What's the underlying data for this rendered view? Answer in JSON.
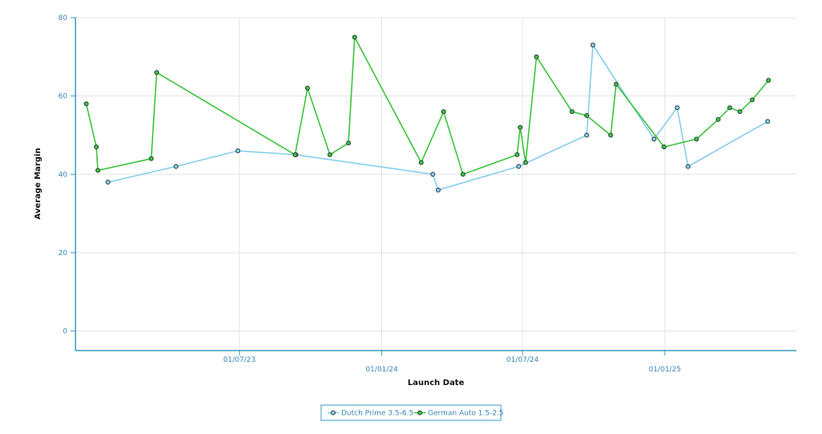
{
  "chart_data": {
    "type": "line",
    "title": "",
    "xlabel": "Launch Date",
    "ylabel": "Average Margin",
    "x_type": "date",
    "xlim": [
      "2022-12-01",
      "2025-06-20"
    ],
    "ylim": [
      -5,
      80
    ],
    "x_ticks": [
      {
        "date": "2023-07-01",
        "label": "01/07/23"
      },
      {
        "date": "2024-01-01",
        "label": "01/01/24"
      },
      {
        "date": "2024-07-01",
        "label": "01/07/24"
      },
      {
        "date": "2025-01-01",
        "label": "01/01/25"
      }
    ],
    "y_ticks": [
      0,
      20,
      40,
      60,
      80
    ],
    "grid": true,
    "legend_position": "bottom-center",
    "series": [
      {
        "name": "Dutch Prime 3.5-6.5",
        "color": "#87ceeb",
        "points": [
          {
            "x": "2023-01-12",
            "y": 38
          },
          {
            "x": "2023-04-10",
            "y": 42
          },
          {
            "x": "2023-06-29",
            "y": 46
          },
          {
            "x": "2023-09-12",
            "y": 45
          },
          {
            "x": "2024-03-07",
            "y": 40
          },
          {
            "x": "2024-03-14",
            "y": 36
          },
          {
            "x": "2024-06-26",
            "y": 42
          },
          {
            "x": "2024-09-22",
            "y": 50
          },
          {
            "x": "2024-09-30",
            "y": 73
          },
          {
            "x": "2024-12-18",
            "y": 49
          },
          {
            "x": "2025-01-17",
            "y": 57
          },
          {
            "x": "2025-01-31",
            "y": 42
          },
          {
            "x": "2025-05-14",
            "y": 53.5
          }
        ]
      },
      {
        "name": "German Auto 1.5-2.5",
        "color": "#3cc43c",
        "points": [
          {
            "x": "2022-12-15",
            "y": 58
          },
          {
            "x": "2022-12-28",
            "y": 47
          },
          {
            "x": "2022-12-30",
            "y": 41
          },
          {
            "x": "2023-03-09",
            "y": 44
          },
          {
            "x": "2023-03-16",
            "y": 66
          },
          {
            "x": "2023-09-11",
            "y": 45
          },
          {
            "x": "2023-09-27",
            "y": 62
          },
          {
            "x": "2023-10-26",
            "y": 45
          },
          {
            "x": "2023-11-19",
            "y": 48
          },
          {
            "x": "2023-11-27",
            "y": 75
          },
          {
            "x": "2024-02-21",
            "y": 43
          },
          {
            "x": "2024-03-21",
            "y": 56
          },
          {
            "x": "2024-04-15",
            "y": 40
          },
          {
            "x": "2024-06-24",
            "y": 45
          },
          {
            "x": "2024-06-28",
            "y": 52
          },
          {
            "x": "2024-07-05",
            "y": 43
          },
          {
            "x": "2024-07-19",
            "y": 70
          },
          {
            "x": "2024-09-03",
            "y": 56
          },
          {
            "x": "2024-09-22",
            "y": 55
          },
          {
            "x": "2024-10-23",
            "y": 50
          },
          {
            "x": "2024-10-30",
            "y": 63
          },
          {
            "x": "2024-12-31",
            "y": 47
          },
          {
            "x": "2025-02-11",
            "y": 49
          },
          {
            "x": "2025-03-11",
            "y": 54
          },
          {
            "x": "2025-03-26",
            "y": 57
          },
          {
            "x": "2025-04-08",
            "y": 56
          },
          {
            "x": "2025-04-24",
            "y": 59
          },
          {
            "x": "2025-05-15",
            "y": 64
          }
        ]
      }
    ]
  }
}
